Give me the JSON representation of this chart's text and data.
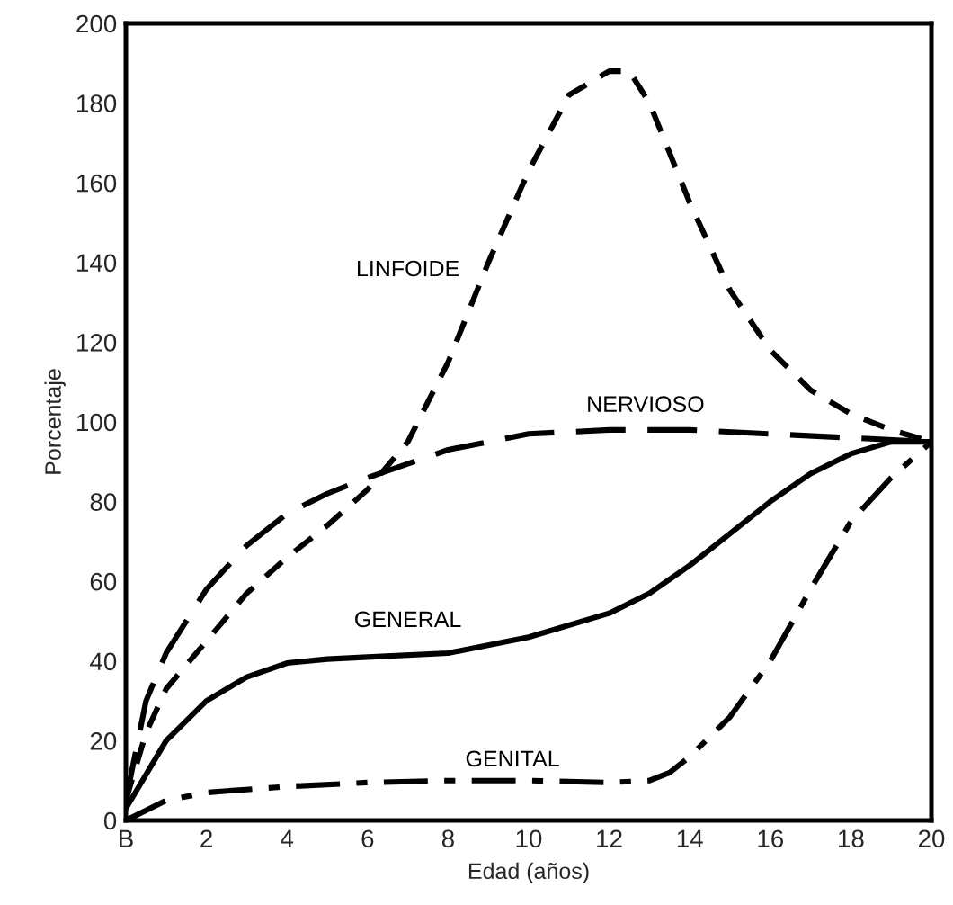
{
  "chart_data": {
    "type": "line",
    "xlabel": "Edad (años)",
    "ylabel": "Porcentaje",
    "xlim": [
      0,
      20
    ],
    "ylim": [
      0,
      200
    ],
    "xticks": [
      {
        "value": 0,
        "label": "B"
      },
      2,
      4,
      6,
      8,
      10,
      12,
      14,
      16,
      18,
      20
    ],
    "yticks": [
      0,
      20,
      40,
      60,
      80,
      100,
      120,
      140,
      160,
      180,
      200
    ],
    "grid": false,
    "legend": false,
    "marker": "none",
    "series": [
      {
        "name": "LINFOIDE",
        "color": "#000000",
        "line_style": "dashed",
        "x": [
          0,
          0.5,
          1,
          2,
          3,
          4,
          5,
          6,
          7,
          8,
          9,
          10,
          11,
          12,
          12.5,
          13,
          14,
          15,
          16,
          17,
          18,
          19,
          20
        ],
        "values": [
          5,
          22,
          33,
          45,
          57,
          66,
          74,
          83,
          95,
          115,
          140,
          163,
          182,
          188,
          188,
          180,
          155,
          133,
          118,
          108,
          102,
          98,
          95
        ]
      },
      {
        "name": "NERVIOSO",
        "color": "#000000",
        "line_style": "longdash",
        "x": [
          0,
          0.5,
          1,
          2,
          3,
          4,
          5,
          6,
          8,
          10,
          12,
          14,
          16,
          18,
          20
        ],
        "values": [
          5,
          30,
          42,
          58,
          69,
          77,
          82,
          86,
          93,
          97,
          98,
          98,
          97,
          96,
          95
        ]
      },
      {
        "name": "GENERAL",
        "color": "#000000",
        "line_style": "solid",
        "x": [
          0,
          1,
          2,
          3,
          4,
          5,
          6,
          8,
          10,
          12,
          13,
          14,
          15,
          16,
          17,
          18,
          19,
          20
        ],
        "values": [
          3,
          20,
          30,
          36,
          39.5,
          40.5,
          41,
          42,
          46,
          52,
          57,
          64,
          72,
          80,
          87,
          92,
          95,
          95
        ]
      },
      {
        "name": "GENITAL",
        "color": "#000000",
        "line_style": "dashdot",
        "x": [
          0,
          1,
          2,
          4,
          6,
          8,
          10,
          12,
          13,
          13.5,
          14,
          15,
          16,
          17,
          18,
          19,
          20
        ],
        "values": [
          0,
          5,
          7,
          8.5,
          9.5,
          10,
          10,
          9.5,
          10,
          12,
          16,
          26,
          40,
          58,
          75,
          86,
          95
        ]
      }
    ]
  }
}
